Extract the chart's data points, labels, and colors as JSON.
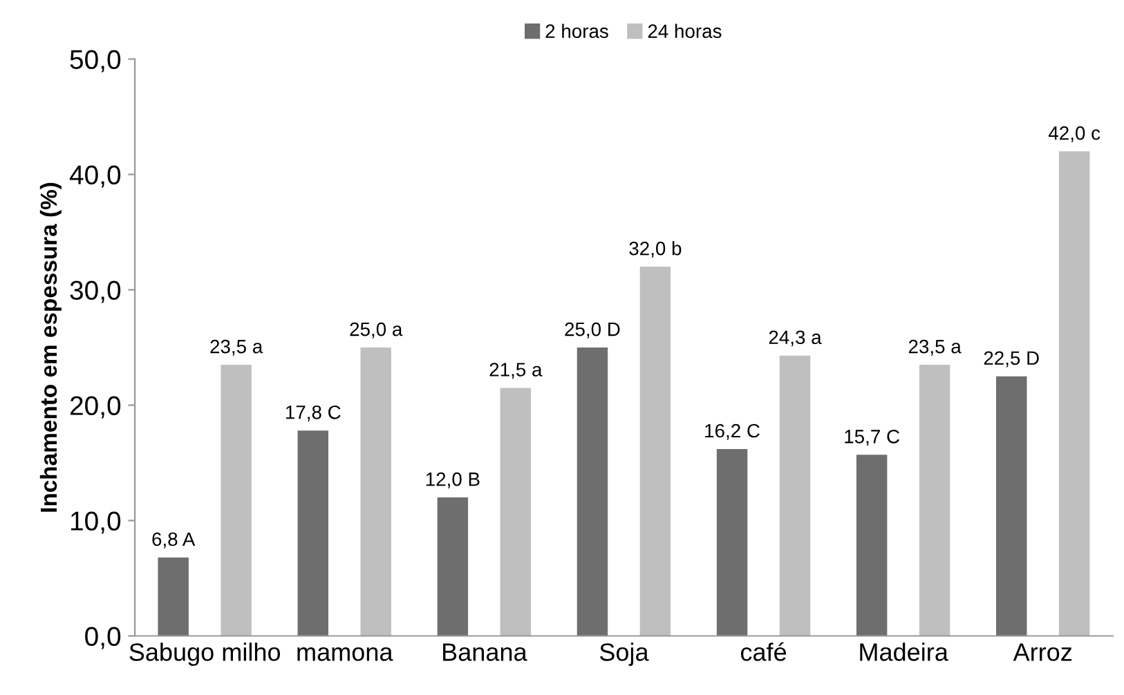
{
  "chart_data": {
    "type": "bar",
    "ylabel": "Inchamento em espessura (%)",
    "categories": [
      "Sabugo milho",
      "mamona",
      "Banana",
      "Soja",
      "café",
      "Madeira",
      "Arroz"
    ],
    "series": [
      {
        "name": "2 horas",
        "color": "#6e6e6e",
        "values": [
          6.8,
          17.8,
          12.0,
          25.0,
          16.2,
          15.7,
          22.5
        ],
        "value_labels": [
          "6,8 A",
          "17,8 C",
          "12,0 B",
          "25,0 D",
          "16,2 C",
          "15,7 C",
          "22,5 D"
        ]
      },
      {
        "name": "24 horas",
        "color": "#bfbfbf",
        "values": [
          23.5,
          25.0,
          21.5,
          32.0,
          24.3,
          23.5,
          42.0
        ],
        "value_labels": [
          "23,5 a",
          "25,0 a",
          "21,5 a",
          "32,0 b",
          "24,3 a",
          "23,5 a",
          "42,0 c"
        ]
      }
    ],
    "ylim": [
      0,
      50
    ],
    "yticks": [
      {
        "value": 0,
        "label": "0,0"
      },
      {
        "value": 10,
        "label": "10,0"
      },
      {
        "value": 20,
        "label": "20,0"
      },
      {
        "value": 30,
        "label": "30,0"
      },
      {
        "value": 40,
        "label": "40,0"
      },
      {
        "value": 50,
        "label": "50,0"
      }
    ],
    "grid": false,
    "legend": "top"
  }
}
